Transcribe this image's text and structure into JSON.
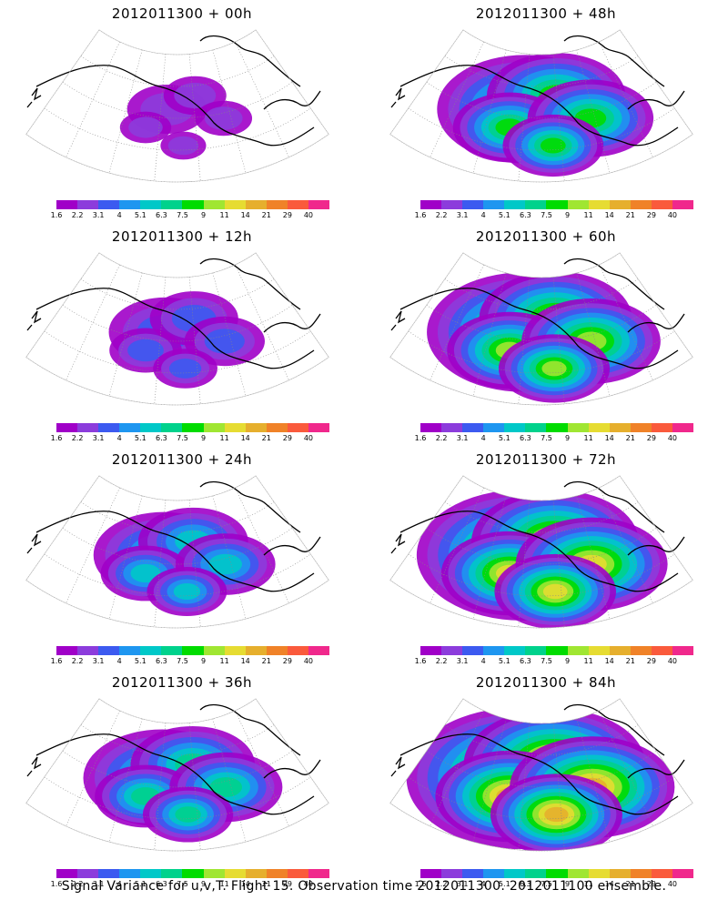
{
  "panels": [
    {
      "title": "2012011300 + 00h",
      "level": 0.12
    },
    {
      "title": "2012011300 + 48h",
      "level": 0.65
    },
    {
      "title": "2012011300 + 12h",
      "level": 0.3
    },
    {
      "title": "2012011300 + 60h",
      "level": 0.75
    },
    {
      "title": "2012011300 + 24h",
      "level": 0.45
    },
    {
      "title": "2012011300 + 72h",
      "level": 0.85
    },
    {
      "title": "2012011300 + 36h",
      "level": 0.55
    },
    {
      "title": "2012011300 + 84h",
      "level": 0.95
    }
  ],
  "colorbar": {
    "colors": [
      "#a000c8",
      "#8c3cdc",
      "#3c5af0",
      "#1e96f0",
      "#00c8c8",
      "#00d28c",
      "#00dc00",
      "#a0e632",
      "#e6dc32",
      "#e6af2d",
      "#f08228",
      "#fa5a3c",
      "#f0288c"
    ],
    "labels": [
      "1.6",
      "2.2",
      "3.1",
      "4",
      "5.1",
      "6.3",
      "7.5",
      "9",
      "11",
      "14",
      "21",
      "29",
      "40"
    ]
  },
  "footer": "Signal Variance for u,v,T. Flight 15. Observation time 2012011300. 2012011100 ensemble."
}
